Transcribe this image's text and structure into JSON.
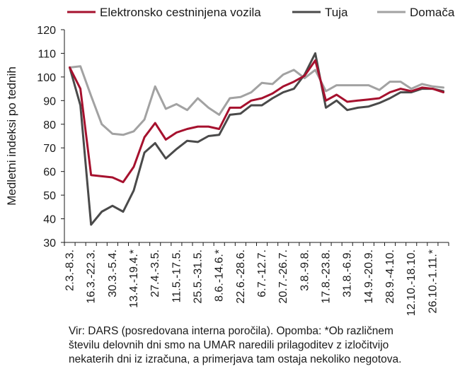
{
  "chart_data": {
    "type": "line",
    "title": "",
    "xlabel": "",
    "ylabel": "Medletni indeksi po tednih",
    "ylim": [
      30,
      120
    ],
    "yticks": [
      30,
      40,
      50,
      60,
      70,
      80,
      90,
      100,
      110,
      120
    ],
    "grid": false,
    "legend_position": "top",
    "categories": [
      "2.3.-8.3.",
      "",
      "16.3.-22.3.",
      "",
      "30.3.-5.4.",
      "",
      "13.4.-19.4.*",
      "",
      "27.4.-3.5.",
      "",
      "11.5.-17.5.",
      "",
      "25.5.-31.5.",
      "",
      "8.6.-14.6.*",
      "",
      "22.6.-28.6.",
      "",
      "6.7.-12.7.",
      "",
      "20.7.-26.7.",
      "",
      "3.8.-9.8.",
      "",
      "17.8.-23.8.",
      "",
      "31.8.-6.9.",
      "",
      "14.9.-20.9.",
      "",
      "28.9.-4.10.",
      "",
      "12.10.-18.10.",
      "",
      "26.10.-1.11.*",
      ""
    ],
    "series": [
      {
        "name": "Elektronsko cestninjena vozila",
        "color": "#a6112e",
        "values": [
          104,
          95,
          58.5,
          58,
          57.5,
          55.5,
          62,
          74.5,
          80.5,
          73.5,
          76.5,
          78,
          79,
          79,
          78,
          87,
          87,
          90,
          91,
          93,
          96,
          98,
          100.5,
          107,
          90,
          92.5,
          89.5,
          90,
          90.5,
          91,
          93.5,
          95,
          94,
          95.5,
          95,
          93.5
        ]
      },
      {
        "name": "Tuja",
        "color": "#4a4a4a",
        "values": [
          104,
          88,
          37.5,
          43,
          45.5,
          43,
          52,
          68,
          72,
          65.5,
          69.5,
          73,
          72.5,
          75,
          75.5,
          84,
          84.5,
          88,
          88,
          91,
          93.5,
          95,
          101,
          110,
          87,
          90,
          86,
          87,
          87.5,
          89,
          91,
          93.5,
          93.5,
          95,
          95,
          94
        ]
      },
      {
        "name": "Domača",
        "color": "#a2a2a2",
        "values": [
          104,
          104.5,
          92,
          80,
          76,
          75.5,
          77,
          82,
          96,
          86.5,
          88.5,
          86,
          91,
          87,
          84,
          91,
          91.5,
          93.5,
          97.5,
          97,
          101,
          103,
          99.5,
          103,
          94,
          96.5,
          96.5,
          96.5,
          96.5,
          94.5,
          98,
          98,
          95,
          97,
          96,
          95.5
        ]
      }
    ]
  },
  "note": {
    "line1": "Vir: DARS (posredovana interna poročila). Opomba: *Ob različnem",
    "line2": "številu delovnih dni smo na UMAR naredili prilagoditev z izločitvijo",
    "line3": "nekaterih dni iz izračuna, a primerjava tam ostaja nekoliko negotova."
  }
}
